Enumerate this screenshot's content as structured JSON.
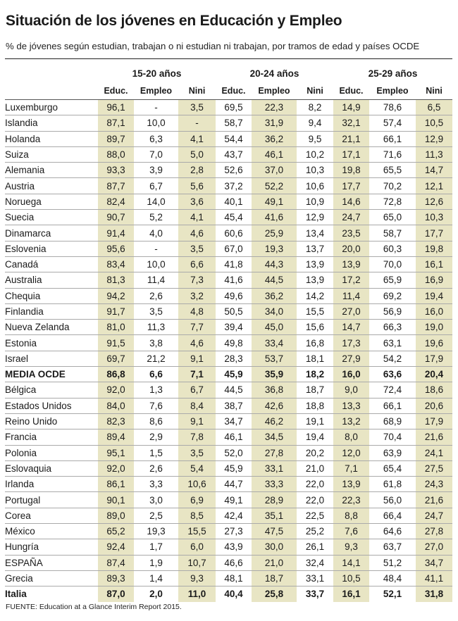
{
  "title": "Situación de los jóvenes en Educación y Empleo",
  "subtitle": "% de jóvenes según estudian, trabajan o ni estudian ni trabajan, por tramos de edad y países OCDE",
  "source": "FUENTE: Education at a Glance Interim Report 2015.",
  "colors": {
    "highlight": "#e8e5c4",
    "text": "#1a1a1a"
  },
  "chart_data": {
    "type": "table",
    "title": "Situación de los jóvenes en Educación y Empleo",
    "groups": [
      "15-20 años",
      "20-24 años",
      "25-29 años"
    ],
    "columns": [
      "Educ.",
      "Empleo",
      "Nini"
    ],
    "highlighted_columns": [
      0,
      2,
      4,
      6,
      8
    ],
    "bold_rows": [
      17,
      31
    ],
    "rows": [
      [
        "Luxemburgo",
        "96,1",
        "-",
        "3,5",
        "69,5",
        "22,3",
        "8,2",
        "14,9",
        "78,6",
        "6,5"
      ],
      [
        "Islandia",
        "87,1",
        "10,0",
        "-",
        "58,7",
        "31,9",
        "9,4",
        "32,1",
        "57,4",
        "10,5"
      ],
      [
        "Holanda",
        "89,7",
        "6,3",
        "4,1",
        "54,4",
        "36,2",
        "9,5",
        "21,1",
        "66,1",
        "12,9"
      ],
      [
        "Suiza",
        "88,0",
        "7,0",
        "5,0",
        "43,7",
        "46,1",
        "10,2",
        "17,1",
        "71,6",
        "11,3"
      ],
      [
        "Alemania",
        "93,3",
        "3,9",
        "2,8",
        "52,6",
        "37,0",
        "10,3",
        "19,8",
        "65,5",
        "14,7"
      ],
      [
        "Austria",
        "87,7",
        "6,7",
        "5,6",
        "37,2",
        "52,2",
        "10,6",
        "17,7",
        "70,2",
        "12,1"
      ],
      [
        "Noruega",
        "82,4",
        "14,0",
        "3,6",
        "40,1",
        "49,1",
        "10,9",
        "14,6",
        "72,8",
        "12,6"
      ],
      [
        "Suecia",
        "90,7",
        "5,2",
        "4,1",
        "45,4",
        "41,6",
        "12,9",
        "24,7",
        "65,0",
        "10,3"
      ],
      [
        "Dinamarca",
        "91,4",
        "4,0",
        "4,6",
        "60,6",
        "25,9",
        "13,4",
        "23,5",
        "58,7",
        "17,7"
      ],
      [
        "Eslovenia",
        "95,6",
        "-",
        "3,5",
        "67,0",
        "19,3",
        "13,7",
        "20,0",
        "60,3",
        "19,8"
      ],
      [
        "Canadá",
        "83,4",
        "10,0",
        "6,6",
        "41,8",
        "44,3",
        "13,9",
        "13,9",
        "70,0",
        "16,1"
      ],
      [
        "Australia",
        "81,3",
        "11,4",
        "7,3",
        "41,6",
        "44,5",
        "13,9",
        "17,2",
        "65,9",
        "16,9"
      ],
      [
        "Chequia",
        "94,2",
        "2,6",
        "3,2",
        "49,6",
        "36,2",
        "14,2",
        "11,4",
        "69,2",
        "19,4"
      ],
      [
        "Finlandia",
        "91,7",
        "3,5",
        "4,8",
        "50,5",
        "34,0",
        "15,5",
        "27,0",
        "56,9",
        "16,0"
      ],
      [
        "Nueva Zelanda",
        "81,0",
        "11,3",
        "7,7",
        "39,4",
        "45,0",
        "15,6",
        "14,7",
        "66,3",
        "19,0"
      ],
      [
        "Estonia",
        "91,5",
        "3,8",
        "4,6",
        "49,8",
        "33,4",
        "16,8",
        "17,3",
        "63,1",
        "19,6"
      ],
      [
        "Israel",
        "69,7",
        "21,2",
        "9,1",
        "28,3",
        "53,7",
        "18,1",
        "27,9",
        "54,2",
        "17,9"
      ],
      [
        "MEDIA OCDE",
        "86,8",
        "6,6",
        "7,1",
        "45,9",
        "35,9",
        "18,2",
        "16,0",
        "63,6",
        "20,4"
      ],
      [
        "Bélgica",
        "92,0",
        "1,3",
        "6,7",
        "44,5",
        "36,8",
        "18,7",
        "9,0",
        "72,4",
        "18,6"
      ],
      [
        "Estados Unidos",
        "84,0",
        "7,6",
        "8,4",
        "38,7",
        "42,6",
        "18,8",
        "13,3",
        "66,1",
        "20,6"
      ],
      [
        "Reino Unido",
        "82,3",
        "8,6",
        "9,1",
        "34,7",
        "46,2",
        "19,1",
        "13,2",
        "68,9",
        "17,9"
      ],
      [
        "Francia",
        "89,4",
        "2,9",
        "7,8",
        "46,1",
        "34,5",
        "19,4",
        "8,0",
        "70,4",
        "21,6"
      ],
      [
        "Polonia",
        "95,1",
        "1,5",
        "3,5",
        "52,0",
        "27,8",
        "20,2",
        "12,0",
        "63,9",
        "24,1"
      ],
      [
        "Eslovaquia",
        "92,0",
        "2,6",
        "5,4",
        "45,9",
        "33,1",
        "21,0",
        "7,1",
        "65,4",
        "27,5"
      ],
      [
        "Irlanda",
        "86,1",
        "3,3",
        "10,6",
        "44,7",
        "33,3",
        "22,0",
        "13,9",
        "61,8",
        "24,3"
      ],
      [
        "Portugal",
        "90,1",
        "3,0",
        "6,9",
        "49,1",
        "28,9",
        "22,0",
        "22,3",
        "56,0",
        "21,6"
      ],
      [
        "Corea",
        "89,0",
        "2,5",
        "8,5",
        "42,4",
        "35,1",
        "22,5",
        "8,8",
        "66,4",
        "24,7"
      ],
      [
        "México",
        "65,2",
        "19,3",
        "15,5",
        "27,3",
        "47,5",
        "25,2",
        "7,6",
        "64,6",
        "27,8"
      ],
      [
        "Hungría",
        "92,4",
        "1,7",
        "6,0",
        "43,9",
        "30,0",
        "26,1",
        "9,3",
        "63,7",
        "27,0"
      ],
      [
        "ESPAÑA",
        "87,4",
        "1,9",
        "10,7",
        "46,6",
        "21,0",
        "32,4",
        "14,1",
        "51,2",
        "34,7"
      ],
      [
        "Grecia",
        "89,3",
        "1,4",
        "9,3",
        "48,1",
        "18,7",
        "33,1",
        "10,5",
        "48,4",
        "41,1"
      ],
      [
        "Italia",
        "87,0",
        "2,0",
        "11,0",
        "40,4",
        "25,8",
        "33,7",
        "16,1",
        "52,1",
        "31,8"
      ]
    ]
  }
}
